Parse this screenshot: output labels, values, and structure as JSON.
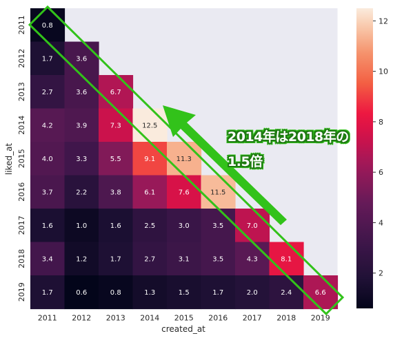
{
  "chart_data": {
    "type": "heatmap",
    "xlabel": "created_at",
    "ylabel": "liked_at",
    "x_categories": [
      "2011",
      "2012",
      "2013",
      "2014",
      "2015",
      "2016",
      "2017",
      "2018",
      "2019"
    ],
    "y_categories": [
      "2011",
      "2012",
      "2013",
      "2014",
      "2015",
      "2016",
      "2017",
      "2018",
      "2019"
    ],
    "values": [
      [
        0.8,
        null,
        null,
        null,
        null,
        null,
        null,
        null,
        null
      ],
      [
        1.7,
        3.6,
        null,
        null,
        null,
        null,
        null,
        null,
        null
      ],
      [
        2.7,
        3.6,
        6.7,
        null,
        null,
        null,
        null,
        null,
        null
      ],
      [
        4.2,
        3.9,
        7.3,
        12.5,
        null,
        null,
        null,
        null,
        null
      ],
      [
        4.0,
        3.3,
        5.5,
        9.1,
        11.3,
        null,
        null,
        null,
        null
      ],
      [
        3.7,
        2.2,
        3.8,
        6.1,
        7.6,
        11.5,
        null,
        null,
        null
      ],
      [
        1.6,
        1.0,
        1.6,
        2.5,
        3.0,
        3.5,
        7.0,
        null,
        null
      ],
      [
        3.4,
        1.2,
        1.7,
        2.7,
        3.1,
        3.5,
        4.3,
        8.1,
        null
      ],
      [
        1.7,
        0.6,
        0.8,
        1.3,
        1.5,
        1.7,
        2.0,
        2.4,
        6.6
      ]
    ],
    "colorbar": {
      "min": 0.6,
      "max": 12.5,
      "ticks": [
        2,
        4,
        6,
        8,
        10,
        12
      ]
    },
    "colormap": "rocket",
    "missing_color": "#eaeaf2",
    "annotations": {
      "line1": "2014年は2018年の",
      "line2": "1.5倍",
      "color": "#32c21a"
    }
  }
}
